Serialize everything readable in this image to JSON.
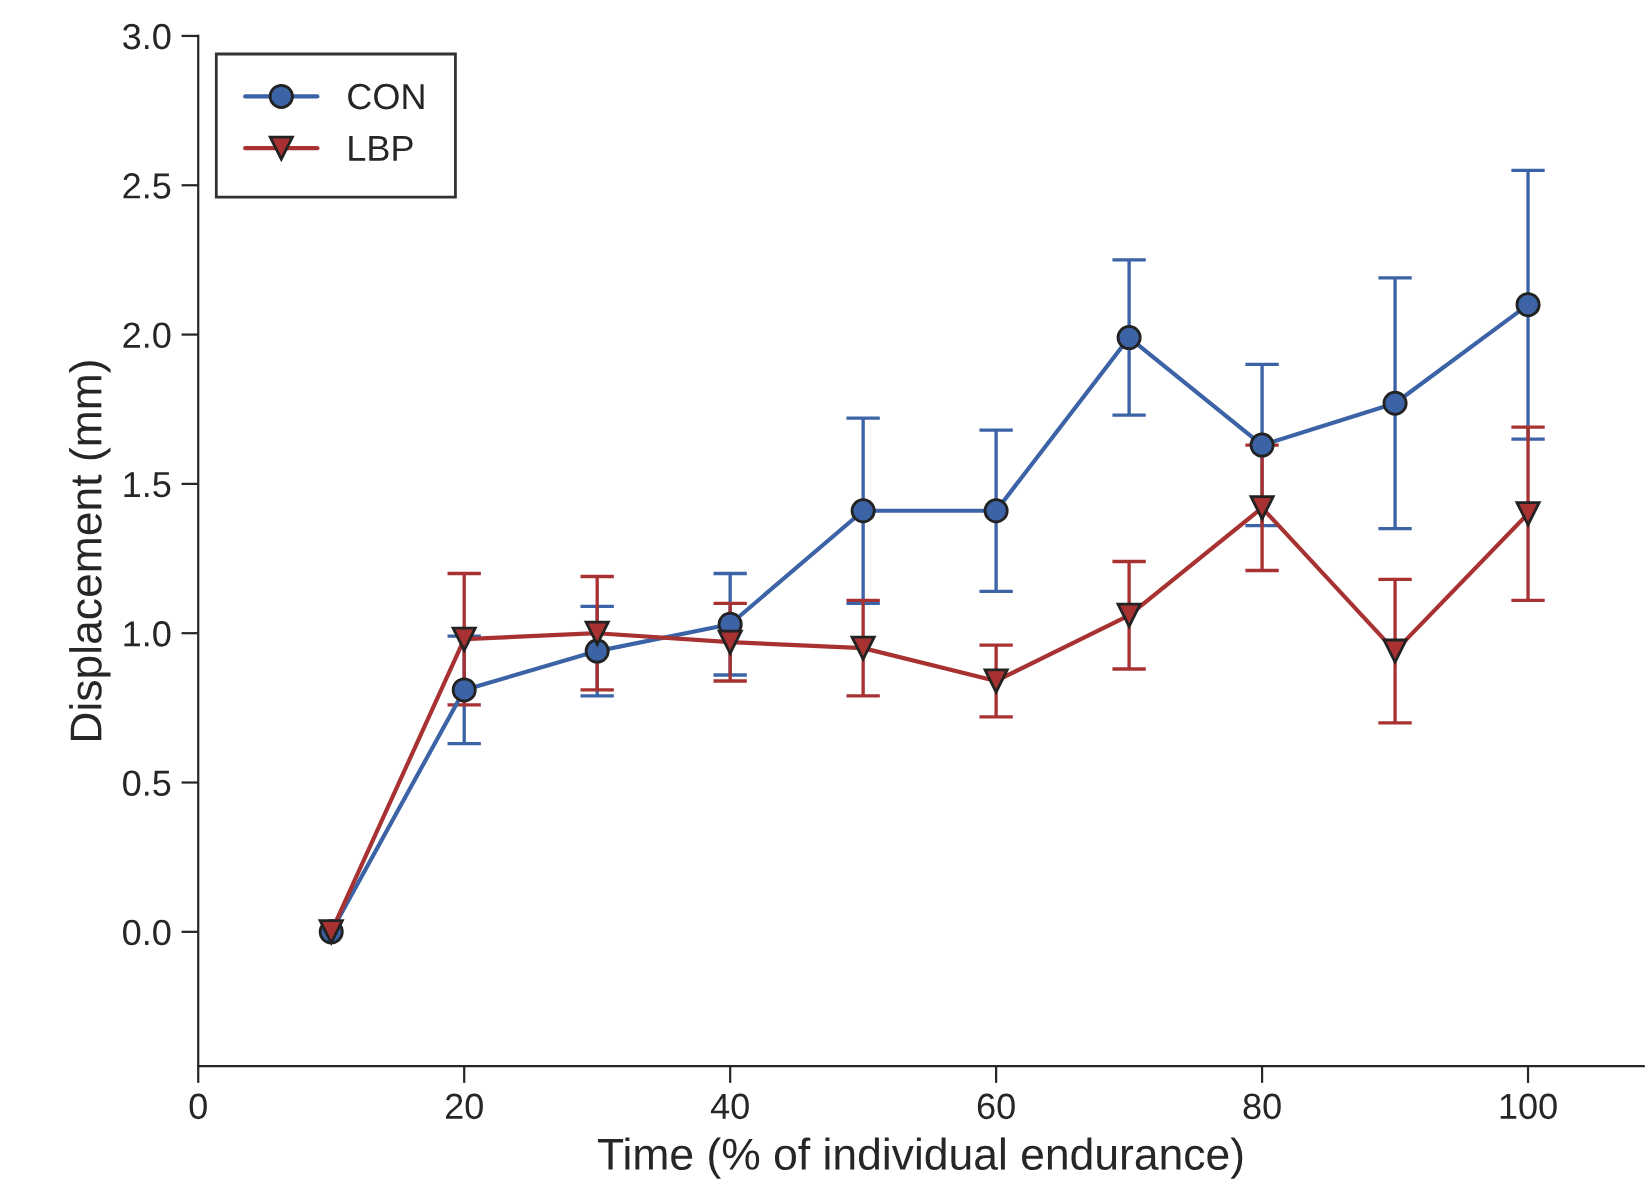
{
  "chart_data": {
    "type": "line",
    "xlabel": "Time (% of individual endurance)",
    "ylabel": "Displacement (mm)",
    "x": [
      10,
      20,
      30,
      40,
      50,
      60,
      70,
      80,
      90,
      100
    ],
    "series": [
      {
        "name": "CON",
        "color": "#3b63a6",
        "marker": "circle",
        "values": [
          0,
          0.81,
          0.94,
          1.03,
          1.41,
          1.41,
          1.99,
          1.63,
          1.77,
          2.1
        ],
        "errors": [
          null,
          0.18,
          0.15,
          0.17,
          0.31,
          0.27,
          0.26,
          0.27,
          0.42,
          0.45
        ]
      },
      {
        "name": "LBP",
        "color": "#a83232",
        "marker": "triangle",
        "values": [
          0,
          0.98,
          1.0,
          0.97,
          0.95,
          0.84,
          1.06,
          1.42,
          0.94,
          1.4
        ],
        "errors": [
          null,
          0.22,
          0.19,
          0.13,
          0.16,
          0.12,
          0.18,
          0.21,
          0.24,
          0.29
        ]
      }
    ],
    "xlim": [
      0,
      108.7
    ],
    "xticks": [
      0,
      20,
      40,
      60,
      80,
      100
    ],
    "ylim": [
      -0.45,
      3.0
    ],
    "yticks": [
      {
        "value": 0,
        "label": "0.0"
      },
      0.5,
      {
        "value": 1,
        "label": "1.0"
      },
      1.5,
      {
        "value": 2,
        "label": "2.0"
      },
      2.5,
      {
        "value": 3,
        "label": "3.0"
      }
    ],
    "grid": false,
    "legend": "top left"
  }
}
